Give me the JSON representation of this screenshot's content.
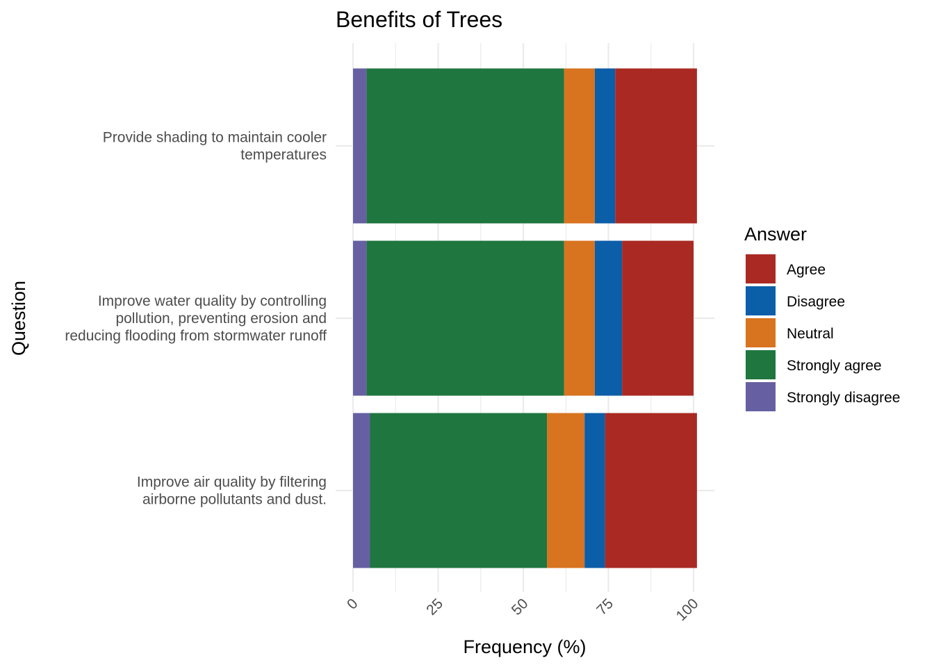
{
  "chart_data": {
    "type": "bar",
    "orientation": "horizontal",
    "stacked": true,
    "title": "Benefits of Trees",
    "xlabel": "Frequency (%)",
    "ylabel": "Question",
    "xlim": [
      0,
      100
    ],
    "x_ticks": [
      "0",
      "25",
      "50",
      "75",
      "100"
    ],
    "grid": true,
    "legend_position": "right",
    "legend_title": "Answer",
    "legend_entries": [
      "Agree",
      "Disagree",
      "Neutral",
      "Strongly agree",
      "Strongly disagree"
    ],
    "categories": [
      [
        "Provide shading to maintain cooler",
        "temperatures"
      ],
      [
        "Improve water quality by controlling",
        "pollution, preventing erosion and",
        "reducing flooding from stormwater runoff"
      ],
      [
        "Improve air quality by filtering",
        "airborne pollutants and dust."
      ]
    ],
    "stack_order": [
      "Strongly disagree",
      "Strongly agree",
      "Neutral",
      "Disagree",
      "Agree"
    ],
    "series": [
      {
        "name": "Agree",
        "color": "#AA2A23",
        "values": [
          24,
          21,
          27
        ]
      },
      {
        "name": "Disagree",
        "color": "#0B5EA8",
        "values": [
          6,
          8,
          6
        ]
      },
      {
        "name": "Neutral",
        "color": "#D8731F",
        "values": [
          9,
          9,
          11
        ]
      },
      {
        "name": "Strongly agree",
        "color": "#1F763F",
        "values": [
          58,
          58,
          52
        ]
      },
      {
        "name": "Strongly disagree",
        "color": "#6660A2",
        "values": [
          4,
          4,
          5
        ]
      }
    ]
  }
}
